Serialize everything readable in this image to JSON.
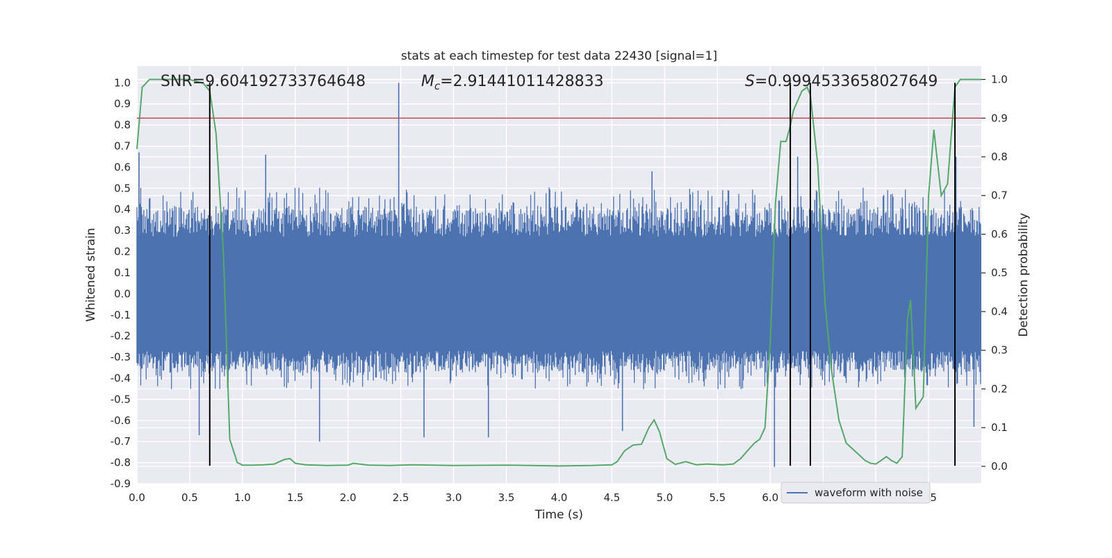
{
  "chart_data": {
    "type": "line",
    "title": "stats at each timestep for test data 22430 [signal=1]",
    "xlabel": "Time (s)",
    "ylabel_left": "Whitened strain",
    "ylabel_right": "Detection probability",
    "xlim": [
      0.0,
      8.0
    ],
    "ylim_left": [
      -0.9,
      1.08
    ],
    "ylim_right": [
      -0.045,
      1.035
    ],
    "x_ticks": [
      "0.0",
      "0.5",
      "1.0",
      "1.5",
      "2.0",
      "2.5",
      "3.0",
      "3.5",
      "4.0",
      "4.5",
      "5.0",
      "5.5",
      "6.0",
      "6.5",
      "7.0",
      "7.5"
    ],
    "y_left_ticks": [
      "-0.9",
      "-0.8",
      "-0.7",
      "-0.6",
      "-0.5",
      "-0.4",
      "-0.3",
      "-0.2",
      "-0.1",
      "0.0",
      "0.1",
      "0.2",
      "0.3",
      "0.4",
      "0.5",
      "0.6",
      "0.7",
      "0.8",
      "0.9",
      "1.0"
    ],
    "y_right_ticks": [
      "0.0",
      "0.1",
      "0.2",
      "0.3",
      "0.4",
      "0.5",
      "0.6",
      "0.7",
      "0.8",
      "0.9",
      "1.0"
    ],
    "annotations": {
      "snr": "SNR=9.604192733764648",
      "mc": "=2.91441011428833",
      "mc_symbol": "M",
      "mc_subscript": "c",
      "s": "=0.9994533658027649",
      "s_symbol": "S"
    },
    "threshold": {
      "value_right_axis": 0.9,
      "color": "#c44e52"
    },
    "detection_lines_x": [
      0.69,
      6.19,
      6.38,
      7.75
    ],
    "detection_line_ymax_left": 1.0,
    "detection_line_ymin_left": -0.815,
    "series": [
      {
        "name": "waveform with noise",
        "color": "#4c72b0",
        "axis": "left",
        "kind": "noise",
        "band_typical": 0.27,
        "band_peak_pos": 0.45,
        "band_peak_neg": -0.4,
        "notable_spikes": [
          {
            "x": 2.48,
            "y": 1.0
          },
          {
            "x": 0.02,
            "y": 0.67
          },
          {
            "x": 1.22,
            "y": 0.66
          },
          {
            "x": 6.04,
            "y": -0.82
          },
          {
            "x": 1.73,
            "y": -0.7
          },
          {
            "x": 7.93,
            "y": -0.63
          },
          {
            "x": 3.33,
            "y": -0.68
          },
          {
            "x": 0.59,
            "y": -0.67
          },
          {
            "x": 2.72,
            "y": -0.68
          },
          {
            "x": 6.26,
            "y": 0.65
          },
          {
            "x": 7.76,
            "y": 0.65
          },
          {
            "x": 4.6,
            "y": -0.65
          },
          {
            "x": 4.88,
            "y": 0.58
          }
        ]
      },
      {
        "color": "#55a868",
        "axis": "right",
        "x": [
          0.0,
          0.05,
          0.12,
          0.3,
          0.5,
          0.63,
          0.69,
          0.75,
          0.82,
          0.88,
          0.95,
          1.0,
          1.1,
          1.2,
          1.3,
          1.4,
          1.45,
          1.5,
          1.6,
          1.8,
          2.0,
          2.05,
          2.2,
          2.4,
          2.6,
          2.8,
          3.0,
          3.5,
          4.0,
          4.3,
          4.5,
          4.55,
          4.62,
          4.7,
          4.78,
          4.85,
          4.9,
          4.95,
          5.02,
          5.1,
          5.2,
          5.3,
          5.4,
          5.55,
          5.65,
          5.72,
          5.8,
          5.85,
          5.9,
          5.95,
          6.0,
          6.05,
          6.1,
          6.15,
          6.19,
          6.22,
          6.3,
          6.35,
          6.38,
          6.45,
          6.52,
          6.58,
          6.65,
          6.72,
          6.8,
          6.9,
          6.95,
          7.0,
          7.05,
          7.1,
          7.15,
          7.2,
          7.25,
          7.3,
          7.33,
          7.38,
          7.45,
          7.5,
          7.55,
          7.62,
          7.68,
          7.75,
          7.8,
          7.85,
          7.9,
          7.95,
          8.0
        ],
        "values": [
          0.82,
          0.98,
          1.0,
          1.0,
          1.0,
          0.99,
          0.97,
          0.86,
          0.55,
          0.07,
          0.01,
          0.003,
          0.003,
          0.004,
          0.006,
          0.018,
          0.02,
          0.008,
          0.004,
          0.002,
          0.003,
          0.008,
          0.003,
          0.002,
          0.004,
          0.003,
          0.002,
          0.003,
          0.001,
          0.002,
          0.004,
          0.012,
          0.04,
          0.055,
          0.057,
          0.1,
          0.12,
          0.09,
          0.02,
          0.005,
          0.012,
          0.004,
          0.006,
          0.004,
          0.006,
          0.02,
          0.045,
          0.06,
          0.07,
          0.1,
          0.32,
          0.68,
          0.84,
          0.84,
          0.88,
          0.92,
          0.97,
          0.98,
          0.96,
          0.78,
          0.42,
          0.25,
          0.12,
          0.06,
          0.04,
          0.015,
          0.008,
          0.006,
          0.015,
          0.025,
          0.015,
          0.008,
          0.025,
          0.38,
          0.43,
          0.15,
          0.18,
          0.7,
          0.87,
          0.7,
          0.73,
          0.98,
          1.0,
          1.0,
          1.0,
          1.0,
          1.0
        ]
      }
    ],
    "legend": {
      "placement": "bottom-right",
      "entries": [
        "waveform with noise"
      ]
    },
    "grid": true,
    "background_color": "#eaeaf2",
    "grid_color": "#ffffff",
    "detection_line_color": "#000000"
  }
}
